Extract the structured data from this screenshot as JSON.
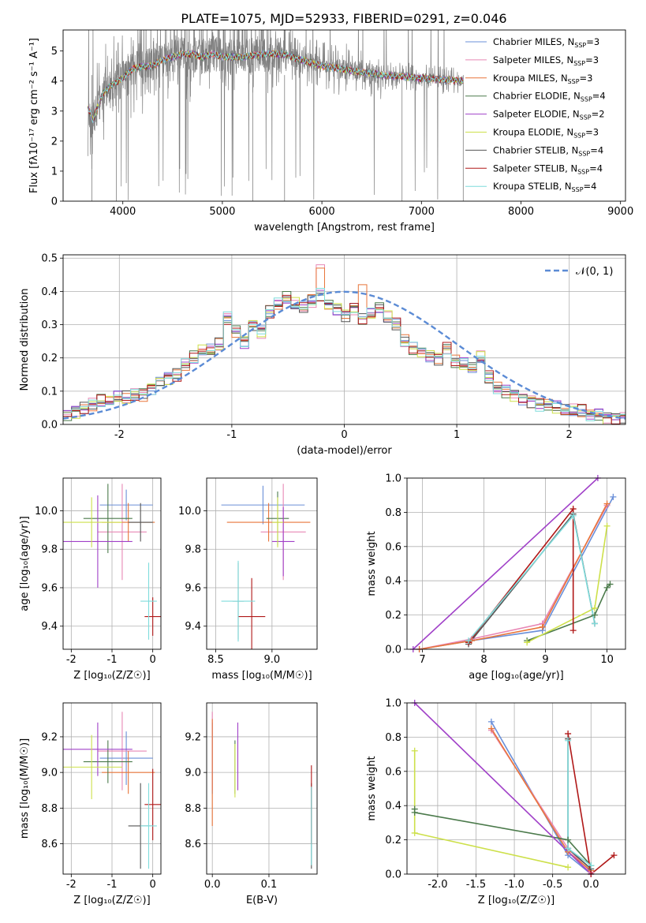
{
  "figure": {
    "title": "PLATE=1075, MJD=52933, FIBERID=0291, z=0.046"
  },
  "models": [
    {
      "name": "Chabrier MILES",
      "nssp": "3",
      "color": "#6a8fd8"
    },
    {
      "name": "Salpeter MILES",
      "nssp": "3",
      "color": "#e887b5"
    },
    {
      "name": "Kroupa MILES",
      "nssp": "3",
      "color": "#e8753a"
    },
    {
      "name": "Chabrier ELODIE",
      "nssp": "4",
      "color": "#4b7a4b"
    },
    {
      "name": "Salpeter ELODIE",
      "nssp": "2",
      "color": "#a040c8"
    },
    {
      "name": "Kroupa ELODIE",
      "nssp": "3",
      "color": "#cde04a"
    },
    {
      "name": "Chabrier STELIB",
      "nssp": "4",
      "color": "#555555"
    },
    {
      "name": "Salpeter STELIB",
      "nssp": "4",
      "color": "#b01818"
    },
    {
      "name": "Kroupa STELIB",
      "nssp": "4",
      "color": "#7fdcdc"
    }
  ],
  "legend_prefix": "N",
  "legend_sub": "SSP",
  "chart_data": [
    {
      "id": "spectrum",
      "type": "line",
      "xlabel": "wavelength [Angstrom, rest frame]",
      "ylabel": "Flux [fλ10⁻¹⁷ erg cm⁻² s⁻¹ A⁻¹]",
      "xlim": [
        3400,
        9050
      ],
      "ylim": [
        0,
        5.7
      ],
      "xticks": [
        4000,
        5000,
        6000,
        7000,
        8000,
        9000
      ],
      "yticks": [
        0,
        1,
        2,
        3,
        4,
        5
      ],
      "grid": false,
      "legend": "right",
      "data_range": [
        3650,
        7420
      ],
      "model_continuum": {
        "x": [
          3650,
          3700,
          3800,
          3900,
          4000,
          4100,
          4200,
          4300,
          4400,
          4500,
          4600,
          4700,
          4800,
          4900,
          5000,
          5200,
          5400,
          5600,
          5800,
          6000,
          6200,
          6400,
          6600,
          6800,
          7000,
          7200,
          7420
        ],
        "y": [
          3.1,
          2.7,
          3.6,
          3.9,
          4.1,
          4.4,
          4.5,
          4.5,
          4.7,
          4.8,
          4.9,
          4.9,
          4.8,
          4.9,
          4.8,
          4.8,
          4.9,
          4.9,
          4.7,
          4.5,
          4.4,
          4.3,
          4.2,
          4.15,
          4.1,
          4.05,
          4.0
        ]
      }
    },
    {
      "id": "residuals",
      "type": "histogram",
      "xlabel": "(data-model)/error",
      "ylabel": "Normed distribution",
      "xlim": [
        -2.5,
        2.5
      ],
      "ylim": [
        0,
        0.51
      ],
      "xticks": [
        -2,
        -1,
        0,
        1,
        2
      ],
      "yticks": [
        0.0,
        0.1,
        0.2,
        0.3,
        0.4,
        0.5
      ],
      "grid": true,
      "legend": "top-right",
      "reference_curve": {
        "label": "𝒩(0, 1)",
        "mean": 0,
        "sigma": 1,
        "color": "#5b8bd5"
      },
      "bin_edges_start": -2.5,
      "bin_width": 0.1,
      "base_values": [
        0.03,
        0.04,
        0.05,
        0.06,
        0.07,
        0.07,
        0.08,
        0.08,
        0.09,
        0.09,
        0.11,
        0.13,
        0.14,
        0.15,
        0.18,
        0.2,
        0.22,
        0.22,
        0.24,
        0.32,
        0.28,
        0.25,
        0.3,
        0.28,
        0.34,
        0.36,
        0.38,
        0.36,
        0.35,
        0.37,
        0.39,
        0.36,
        0.35,
        0.33,
        0.35,
        0.32,
        0.33,
        0.35,
        0.32,
        0.3,
        0.25,
        0.23,
        0.22,
        0.21,
        0.2,
        0.23,
        0.19,
        0.18,
        0.17,
        0.2,
        0.14,
        0.11,
        0.1,
        0.09,
        0.08,
        0.07,
        0.06,
        0.06,
        0.05,
        0.04,
        0.04,
        0.04,
        0.03,
        0.03,
        0.02,
        0.02,
        0.02
      ]
    },
    {
      "id": "age-vs-Z",
      "type": "scatter",
      "xlabel": "Z [log₁₀(Z/Z☉)]",
      "ylabel": "age  [log₁₀(age/yr)]",
      "xlim": [
        -2.2,
        0.2
      ],
      "ylim": [
        9.28,
        10.17
      ],
      "xticks": [
        -2,
        -1,
        0
      ],
      "yticks": [
        9.4,
        9.6,
        9.8,
        10.0
      ],
      "grid": true,
      "points": [
        {
          "x": -0.65,
          "xerr": 0.65,
          "y": 10.03,
          "yerr": 0.08
        },
        {
          "x": -0.75,
          "xerr": 0.6,
          "y": 9.89,
          "yerr": 0.25
        },
        {
          "x": -0.6,
          "xerr": 0.65,
          "y": 9.94,
          "yerr": 0.1
        },
        {
          "x": -1.1,
          "xerr": 0.6,
          "y": 9.96,
          "yerr": 0.18
        },
        {
          "x": -1.35,
          "xerr": 0.85,
          "y": 9.84,
          "yerr": 0.24
        },
        {
          "x": -1.5,
          "xerr": 0.75,
          "y": 9.94,
          "yerr": 0.13
        },
        {
          "x": -0.3,
          "xerr": 0.3,
          "y": 9.94,
          "yerr": 0.1
        },
        {
          "x": 0.0,
          "xerr": 0.2,
          "y": 9.45,
          "yerr": 0.1
        },
        {
          "x": -0.1,
          "xerr": 0.2,
          "y": 9.53,
          "yerr": 0.2
        }
      ]
    },
    {
      "id": "age-vs-mass",
      "type": "scatter",
      "xlabel": "mass [log₁₀(M/M☉)]",
      "ylabel": "",
      "xlim": [
        8.42,
        9.4
      ],
      "ylim": [
        9.28,
        10.17
      ],
      "xticks": [
        8.5,
        9.0
      ],
      "yticks": [
        9.4,
        9.6,
        9.8,
        10.0
      ],
      "grid": true,
      "points": [
        {
          "x": 8.92,
          "xerr": 0.37,
          "y": 10.03,
          "yerr": 0.1
        },
        {
          "x": 9.1,
          "xerr": 0.2,
          "y": 9.89,
          "yerr": 0.25
        },
        {
          "x": 8.97,
          "xerr": 0.37,
          "y": 9.94,
          "yerr": 0.1
        },
        {
          "x": 9.05,
          "xerr": 0.1,
          "y": 9.96,
          "yerr": 0.14
        },
        {
          "x": 9.1,
          "xerr": 0.1,
          "y": 9.84,
          "yerr": 0.18
        },
        {
          "x": 9.05,
          "xerr": 0.05,
          "y": 9.94,
          "yerr": 0.13
        },
        {
          "x": 8.7,
          "xerr": 0.05,
          "y": 9.53,
          "yerr": 0.2
        },
        {
          "x": 8.82,
          "xerr": 0.12,
          "y": 9.45,
          "yerr": 0.2
        },
        {
          "x": 8.7,
          "xerr": 0.15,
          "y": 9.53,
          "yerr": 0.21
        }
      ]
    },
    {
      "id": "weight-vs-age",
      "type": "line",
      "xlabel": "age  [log₁₀(age/yr)]",
      "ylabel": "mass weight",
      "xlim": [
        6.75,
        10.3
      ],
      "ylim": [
        0,
        1
      ],
      "xticks": [
        7,
        8,
        9,
        10
      ],
      "yticks": [
        0.0,
        0.2,
        0.4,
        0.6,
        0.8,
        1.0
      ],
      "grid": true,
      "series": [
        {
          "x": [
            6.95,
            7.8,
            8.95,
            10.1
          ],
          "y": [
            0.0,
            0.05,
            0.11,
            0.89
          ]
        },
        {
          "x": [
            6.95,
            7.8,
            8.95,
            10.0
          ],
          "y": [
            0.0,
            0.06,
            0.15,
            0.84
          ]
        },
        {
          "x": [
            6.95,
            7.8,
            8.95,
            10.0
          ],
          "y": [
            0.0,
            0.05,
            0.13,
            0.85
          ]
        },
        {
          "x": [
            8.7,
            9.8,
            10.0,
            10.05
          ],
          "y": [
            0.05,
            0.2,
            0.36,
            0.38
          ]
        },
        {
          "x": [
            6.85,
            9.85
          ],
          "y": [
            0.0,
            1.0
          ]
        },
        {
          "x": [
            8.7,
            9.8,
            10.0
          ],
          "y": [
            0.04,
            0.24,
            0.72
          ]
        },
        {
          "x": [
            7.75,
            9.45,
            9.8
          ],
          "y": [
            0.03,
            0.79,
            0.15
          ]
        },
        {
          "x": [
            7.75,
            9.45,
            9.45
          ],
          "y": [
            0.04,
            0.82,
            0.11
          ]
        },
        {
          "x": [
            7.75,
            9.45,
            9.8
          ],
          "y": [
            0.05,
            0.78,
            0.15
          ]
        }
      ]
    },
    {
      "id": "mass-vs-Z",
      "type": "scatter",
      "xlabel": "Z [log₁₀(Z/Z☉)]",
      "ylabel": "mass [log₁₀(M/M☉)]",
      "xlim": [
        -2.2,
        0.2
      ],
      "ylim": [
        8.43,
        9.39
      ],
      "xticks": [
        -2,
        -1,
        0
      ],
      "yticks": [
        8.6,
        8.8,
        9.0,
        9.2
      ],
      "grid": true,
      "points": [
        {
          "x": -0.65,
          "xerr": 0.65,
          "y": 9.08,
          "yerr": 0.15
        },
        {
          "x": -0.75,
          "xerr": 0.6,
          "y": 9.12,
          "yerr": 0.22
        },
        {
          "x": -0.6,
          "xerr": 0.65,
          "y": 9.0,
          "yerr": 0.12
        },
        {
          "x": -1.1,
          "xerr": 0.6,
          "y": 9.06,
          "yerr": 0.12
        },
        {
          "x": -1.35,
          "xerr": 0.85,
          "y": 9.13,
          "yerr": 0.15
        },
        {
          "x": -1.5,
          "xerr": 0.75,
          "y": 9.03,
          "yerr": 0.18
        },
        {
          "x": -0.3,
          "xerr": 0.3,
          "y": 8.7,
          "yerr": 0.24
        },
        {
          "x": 0.0,
          "xerr": 0.2,
          "y": 8.82,
          "yerr": 0.2
        },
        {
          "x": -0.1,
          "xerr": 0.2,
          "y": 8.7,
          "yerr": 0.24
        }
      ]
    },
    {
      "id": "mass-vs-EBV",
      "type": "scatter",
      "xlabel": "E(B-V)",
      "ylabel": "",
      "xlim": [
        -0.01,
        0.185
      ],
      "ylim": [
        8.43,
        9.39
      ],
      "xticks": [
        0.0,
        0.1
      ],
      "yticks": [
        8.6,
        8.8,
        9.0,
        9.2
      ],
      "grid": true,
      "points": [
        {
          "x": 0.0,
          "xerr": 0,
          "y": 9.08,
          "yerr": 0.2
        },
        {
          "x": 0.0,
          "xerr": 0,
          "y": 9.12,
          "yerr": 0.22
        },
        {
          "x": 0.0,
          "xerr": 0,
          "y": 9.0,
          "yerr": 0.3
        },
        {
          "x": 0.04,
          "xerr": 0,
          "y": 9.03,
          "yerr": 0.15
        },
        {
          "x": 0.045,
          "xerr": 0,
          "y": 9.09,
          "yerr": 0.19
        },
        {
          "x": 0.04,
          "xerr": 0,
          "y": 9.01,
          "yerr": 0.15
        },
        {
          "x": 0.175,
          "xerr": 0,
          "y": 8.7,
          "yerr": 0.24
        },
        {
          "x": 0.175,
          "xerr": 0,
          "y": 8.82,
          "yerr": 0.22
        },
        {
          "x": 0.175,
          "xerr": 0,
          "y": 8.7,
          "yerr": 0.22
        }
      ]
    },
    {
      "id": "weight-vs-Z",
      "type": "line",
      "xlabel": "Z [log₁₀(Z/Z☉)]",
      "ylabel": "mass weight",
      "xlim": [
        -2.4,
        0.45
      ],
      "ylim": [
        0,
        1
      ],
      "xticks": [
        -2.0,
        -1.5,
        -1.0,
        -0.5,
        0.0
      ],
      "yticks": [
        0.0,
        0.2,
        0.4,
        0.6,
        0.8,
        1.0
      ],
      "grid": true,
      "series": [
        {
          "x": [
            -1.3,
            -0.3,
            0.0
          ],
          "y": [
            0.89,
            0.11,
            0.0
          ]
        },
        {
          "x": [
            -1.3,
            -0.3,
            0.0
          ],
          "y": [
            0.84,
            0.15,
            0.01
          ]
        },
        {
          "x": [
            -1.3,
            -0.3,
            0.0
          ],
          "y": [
            0.85,
            0.13,
            0.02
          ]
        },
        {
          "x": [
            -2.3,
            -2.3,
            -0.3,
            0.0
          ],
          "y": [
            0.38,
            0.36,
            0.2,
            0.05
          ]
        },
        {
          "x": [
            -2.3,
            0.0
          ],
          "y": [
            1.0,
            0.0
          ]
        },
        {
          "x": [
            -2.3,
            -2.3,
            -0.3
          ],
          "y": [
            0.72,
            0.24,
            0.04
          ]
        },
        {
          "x": [
            -0.3,
            -0.3,
            0.0
          ],
          "y": [
            0.79,
            0.15,
            0.03
          ]
        },
        {
          "x": [
            -0.3,
            0.0,
            0.3
          ],
          "y": [
            0.82,
            0.0,
            0.11
          ]
        },
        {
          "x": [
            -0.3,
            -0.3,
            0.0
          ],
          "y": [
            0.78,
            0.15,
            0.05
          ]
        }
      ]
    }
  ]
}
